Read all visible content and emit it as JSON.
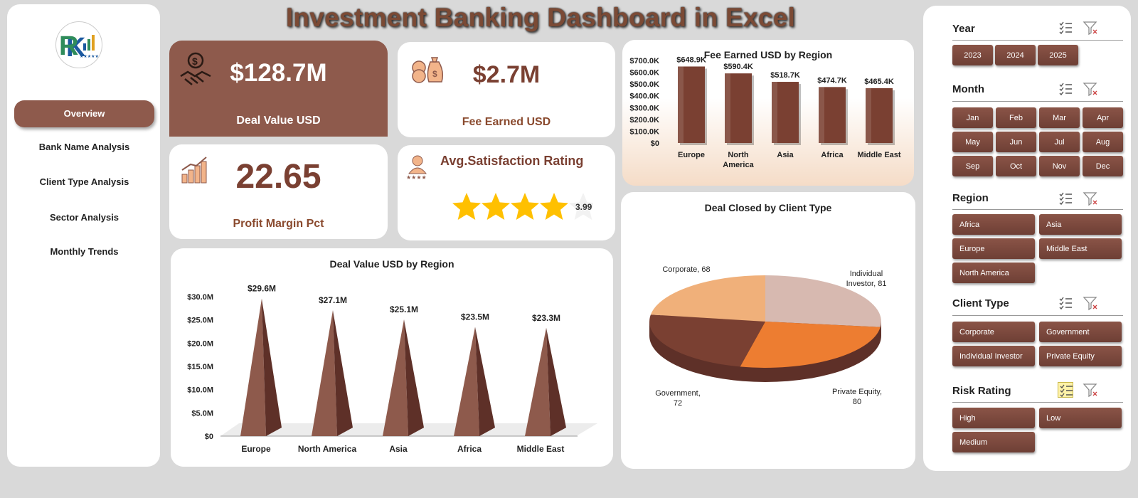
{
  "title": "Investment Banking Dashboard in Excel",
  "sidebar": {
    "items": [
      {
        "label": "Overview"
      },
      {
        "label": "Bank Name Analysis"
      },
      {
        "label": "Client Type Analysis"
      },
      {
        "label": "Sector Analysis"
      },
      {
        "label": "Monthly Trends"
      }
    ]
  },
  "kpis": {
    "deal_value": {
      "value": "$128.7M",
      "label": "Deal Value USD",
      "icon": "handshake-money-icon"
    },
    "fee_earned": {
      "value": "$2.7M",
      "label": "Fee Earned USD",
      "icon": "money-bags-icon"
    },
    "profit_margin": {
      "value": "22.65",
      "label": "Profit Margin Pct",
      "icon": "growth-coins-icon"
    },
    "satisfaction": {
      "label": "Avg.Satisfaction Rating",
      "value": "3.99",
      "rating": 3.99,
      "max": 5,
      "icon": "customer-rating-icon"
    }
  },
  "colors": {
    "brown": "#8e5a4c",
    "dark_brown": "#7a4032",
    "star": "#ffc000",
    "orange": "#ed7d31"
  },
  "charts": {
    "fee_by_region": {
      "type": "bar",
      "title": "Fee Earned USD by Region",
      "categories": [
        "Europe",
        "North America",
        "Asia",
        "Africa",
        "Middle East"
      ],
      "values": [
        648.9,
        590.4,
        518.7,
        474.7,
        465.4
      ],
      "data_labels": [
        "$648.9K",
        "$590.4K",
        "$518.7K",
        "$474.7K",
        "$465.4K"
      ],
      "ylim": [
        0,
        700
      ],
      "yticks": [
        "$0",
        "$100.0K",
        "$200.0K",
        "$300.0K",
        "$400.0K",
        "$500.0K",
        "$600.0K",
        "$700.0K"
      ]
    },
    "deal_by_region": {
      "type": "bar",
      "title": "Deal Value USD by Region",
      "categories": [
        "Europe",
        "North America",
        "Asia",
        "Africa",
        "Middle East"
      ],
      "values": [
        29.6,
        27.1,
        25.1,
        23.5,
        23.3
      ],
      "data_labels": [
        "$29.6M",
        "$27.1M",
        "$25.1M",
        "$23.5M",
        "$23.3M"
      ],
      "ylim": [
        0,
        30
      ],
      "yticks": [
        "$0",
        "$5.0M",
        "$10.0M",
        "$15.0M",
        "$20.0M",
        "$25.0M",
        "$30.0M"
      ]
    },
    "deal_by_client": {
      "type": "pie",
      "title": "Deal Closed by Client Type",
      "slices": [
        {
          "label": "Individual Investor",
          "value": 81,
          "color": "#d7b9b0"
        },
        {
          "label": "Private Equity",
          "value": 80,
          "color": "#ed7d31"
        },
        {
          "label": "Government",
          "value": 72,
          "color": "#7a4032"
        },
        {
          "label": "Corporate",
          "value": 68,
          "color": "#f0b07a"
        }
      ],
      "data_labels": [
        "Individual Investor, 81",
        "Private Equity, 80",
        "Government, 72",
        "Corporate, 68"
      ]
    }
  },
  "slicers": {
    "year": {
      "title": "Year",
      "items": [
        "2023",
        "2024",
        "2025"
      ]
    },
    "month": {
      "title": "Month",
      "items": [
        "Jan",
        "Feb",
        "Mar",
        "Apr",
        "May",
        "Jun",
        "Jul",
        "Aug",
        "Sep",
        "Oct",
        "Nov",
        "Dec"
      ]
    },
    "region": {
      "title": "Region",
      "items": [
        "Africa",
        "Asia",
        "Europe",
        "Middle East",
        "North America"
      ]
    },
    "client_type": {
      "title": "Client Type",
      "items": [
        "Corporate",
        "Government",
        "Individual Investor",
        "Private Equity"
      ]
    },
    "risk_rating": {
      "title": "Risk Rating",
      "items": [
        "High",
        "Low",
        "Medium"
      ]
    }
  }
}
